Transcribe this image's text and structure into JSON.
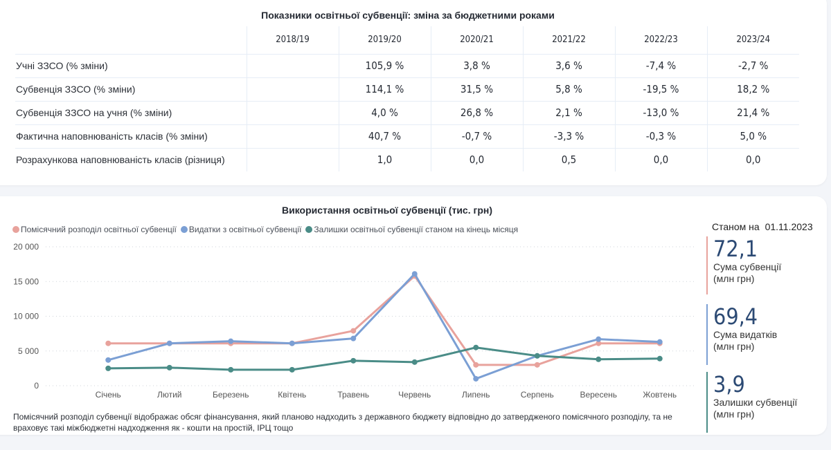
{
  "table_card": {
    "title": "Показники освітньої субвенції: зміна за бюджетними роками",
    "columns": [
      "2018/19",
      "2019/20",
      "2020/21",
      "2021/22",
      "2022/23",
      "2023/24"
    ],
    "rows": [
      {
        "label": "Учні ЗЗСО (% зміни)",
        "values": [
          "",
          "105,9 %",
          "3,8 %",
          "3,6 %",
          "-7,4 %",
          "-2,7 %"
        ]
      },
      {
        "label": "Субвенція ЗЗСО (% зміни)",
        "values": [
          "",
          "114,1 %",
          "31,5 %",
          "5,8 %",
          "-19,5 %",
          "18,2 %"
        ]
      },
      {
        "label": "Субвенція ЗЗСО на учня (% зміни)",
        "values": [
          "",
          "4,0 %",
          "26,8 %",
          "2,1 %",
          "-13,0 %",
          "21,4 %"
        ]
      },
      {
        "label": "Фактична наповнюваність класів (% зміни)",
        "values": [
          "",
          "40,7 %",
          "-0,7 %",
          "-3,3 %",
          "-0,3 %",
          "5,0 %"
        ]
      },
      {
        "label": "Розрахункова наповнюваність класів (різниця)",
        "values": [
          "",
          "1,0",
          "0,0",
          "0,5",
          "0,0",
          "0,0"
        ]
      }
    ]
  },
  "chart_card": {
    "note": "Помісячний розподіл субвенції відображає обсяг фінансування, який планово надходить з державного бюджету відповідно до затвердженого помісячного розподілу, та не враховує такі міжбюджетні надходження як - кошти на простій, ІРЦ тощо",
    "kpi": {
      "date_label": "Станом на",
      "date": "01.11.2023",
      "items": [
        {
          "value": "72,1",
          "label_line1": "Сума субвенції",
          "label_line2": "(млн грн)",
          "color": "#e8a29c"
        },
        {
          "value": "69,4",
          "label_line1": "Сума видатків",
          "label_line2": "(млн грн)",
          "color": "#7b9fd4"
        },
        {
          "value": "3,9",
          "label_line1": "Залишки субвенції",
          "label_line2": "(млн грн)",
          "color": "#4a8c87"
        }
      ]
    }
  },
  "chart_data": {
    "type": "line",
    "title": "Використання освітньої субвенції (тис. грн)",
    "xlabel": "",
    "ylabel": "",
    "categories": [
      "Січень",
      "Лютий",
      "Березень",
      "Квітень",
      "Травень",
      "Червень",
      "Липень",
      "Серпень",
      "Вересень",
      "Жовтень"
    ],
    "ylim": [
      0,
      20000
    ],
    "yticks": [
      0,
      5000,
      10000,
      15000,
      20000
    ],
    "ytick_labels": [
      "0",
      "5 000",
      "10 000",
      "15 000",
      "20 000"
    ],
    "grid": true,
    "legend_position": "top-left",
    "series": [
      {
        "name": "Помісячний розподіл освітньої субвенції",
        "color": "#e8a29c",
        "values": [
          6100,
          6100,
          6100,
          6100,
          7900,
          15800,
          3000,
          3000,
          6100,
          6100
        ]
      },
      {
        "name": "Видатки з освітньої субвенції",
        "color": "#7b9fd4",
        "values": [
          3700,
          6100,
          6400,
          6100,
          6800,
          16100,
          1000,
          4300,
          6700,
          6300
        ]
      },
      {
        "name": "Залишки освітньої субвенції станом на кінець місяця",
        "color": "#4a8c87",
        "values": [
          2500,
          2600,
          2300,
          2300,
          3600,
          3400,
          5500,
          4300,
          3800,
          3900
        ]
      }
    ]
  }
}
